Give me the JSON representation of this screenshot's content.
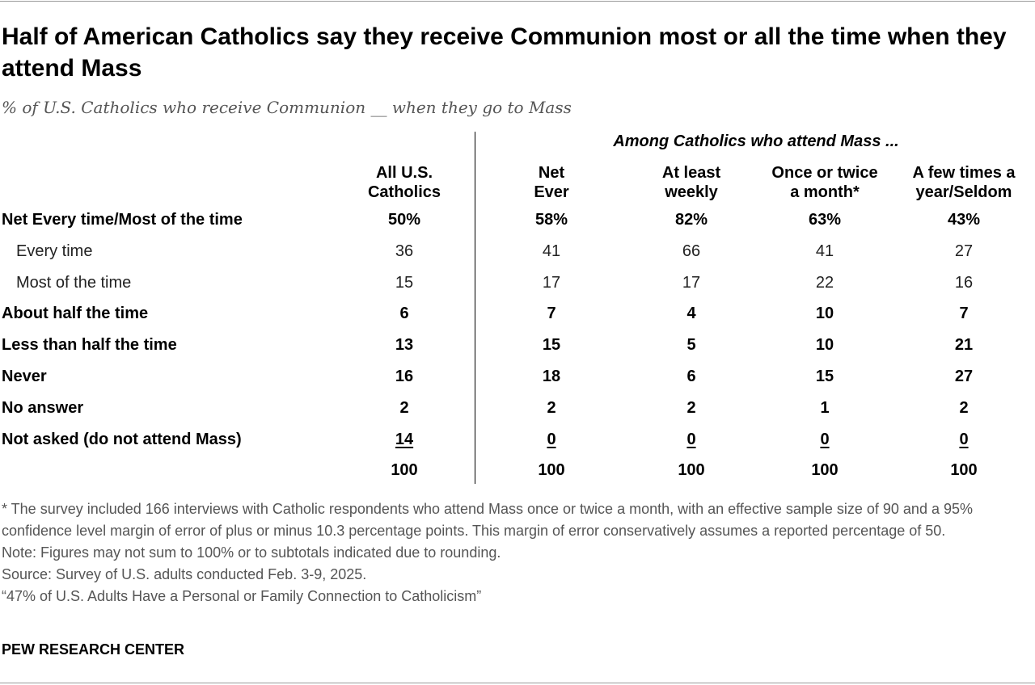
{
  "title": "Half of American Catholics say they receive Communion most or all the time when they attend Mass",
  "subtitle": "% of U.S. Catholics who receive Communion __ when they go to Mass",
  "group_header": "Among Catholics who attend Mass ...",
  "chart_data": {
    "type": "table",
    "columns": [
      {
        "line1": "All U.S.",
        "line2": "Catholics"
      },
      {
        "line1": "Net",
        "line2": "Ever"
      },
      {
        "line1": "At least",
        "line2": "weekly"
      },
      {
        "line1": "Once or twice",
        "line2": "a month*"
      },
      {
        "line1": "A few times a",
        "line2": "year/Seldom"
      }
    ],
    "rows": [
      {
        "label": "Net Every time/Most of the time",
        "style": "bold",
        "values": [
          "50%",
          "58%",
          "82%",
          "63%",
          "43%"
        ]
      },
      {
        "label": "Every time",
        "style": "indent",
        "values": [
          "36",
          "41",
          "66",
          "41",
          "27"
        ]
      },
      {
        "label": "Most of the time",
        "style": "indent",
        "values": [
          "15",
          "17",
          "17",
          "22",
          "16"
        ]
      },
      {
        "label": "About half the time",
        "style": "bold",
        "values": [
          "6",
          "7",
          "4",
          "10",
          "7"
        ]
      },
      {
        "label": "Less than half the time",
        "style": "bold",
        "values": [
          "13",
          "15",
          "5",
          "10",
          "21"
        ]
      },
      {
        "label": "Never",
        "style": "bold",
        "values": [
          "16",
          "18",
          "6",
          "15",
          "27"
        ]
      },
      {
        "label": "No answer",
        "style": "bold",
        "values": [
          "2",
          "2",
          "2",
          "1",
          "2"
        ]
      },
      {
        "label": "Not asked (do not attend Mass)",
        "style": "bold-underline",
        "values": [
          "14",
          "0",
          "0",
          "0",
          "0"
        ]
      },
      {
        "label": "",
        "style": "bold",
        "values": [
          "100",
          "100",
          "100",
          "100",
          "100"
        ]
      }
    ]
  },
  "notes": [
    "* The survey included 166 interviews with Catholic respondents who attend Mass once or twice a month, with an effective sample size of 90 and a 95% confidence level margin of error of plus or minus 10.3 percentage points. This margin of error conservatively assumes a reported percentage of 50.",
    "Note: Figures may not sum to 100% or to subtotals indicated due to rounding.",
    "Source: Survey of U.S. adults conducted Feb. 3-9, 2025.",
    "“47% of U.S. Adults Have a Personal or Family Connection to Catholicism”"
  ],
  "organization": "PEW RESEARCH CENTER"
}
